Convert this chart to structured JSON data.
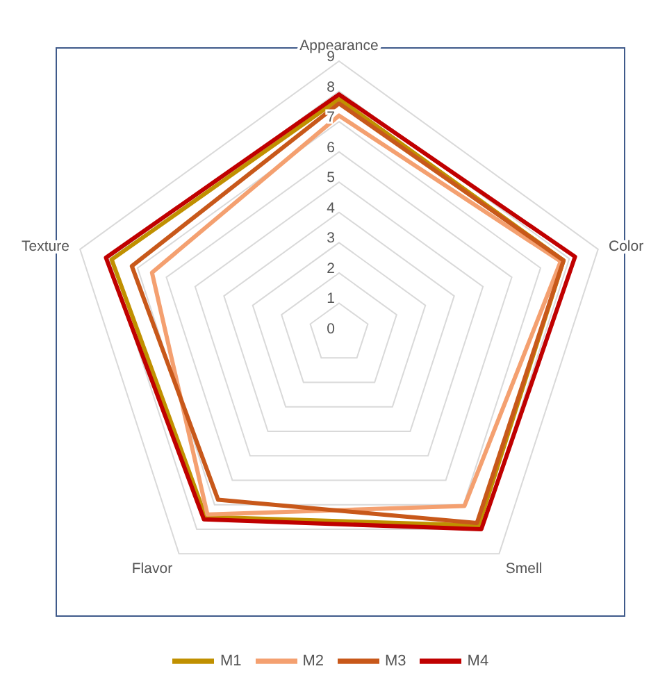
{
  "chart_data": {
    "type": "radar",
    "categories": [
      "Appearance",
      "Color",
      "Smell",
      "Flavor",
      "Texture"
    ],
    "series": [
      {
        "name": "M1",
        "color": "#c09000",
        "values": [
          7.75,
          7.8,
          7.85,
          7.5,
          7.9
        ]
      },
      {
        "name": "M2",
        "color": "#f4a070",
        "values": [
          7.2,
          7.7,
          7.05,
          7.4,
          6.5
        ]
      },
      {
        "name": "M3",
        "color": "#c8581a",
        "values": [
          7.6,
          7.8,
          7.75,
          6.8,
          7.2
        ]
      },
      {
        "name": "M4",
        "color": "#c00000",
        "values": [
          7.9,
          8.2,
          8.0,
          7.6,
          8.1
        ]
      }
    ],
    "ylim": [
      0,
      9
    ],
    "yticks": [
      0,
      1,
      2,
      3,
      4,
      5,
      6,
      7,
      8,
      9
    ],
    "grid": true,
    "legend": "bottom"
  }
}
